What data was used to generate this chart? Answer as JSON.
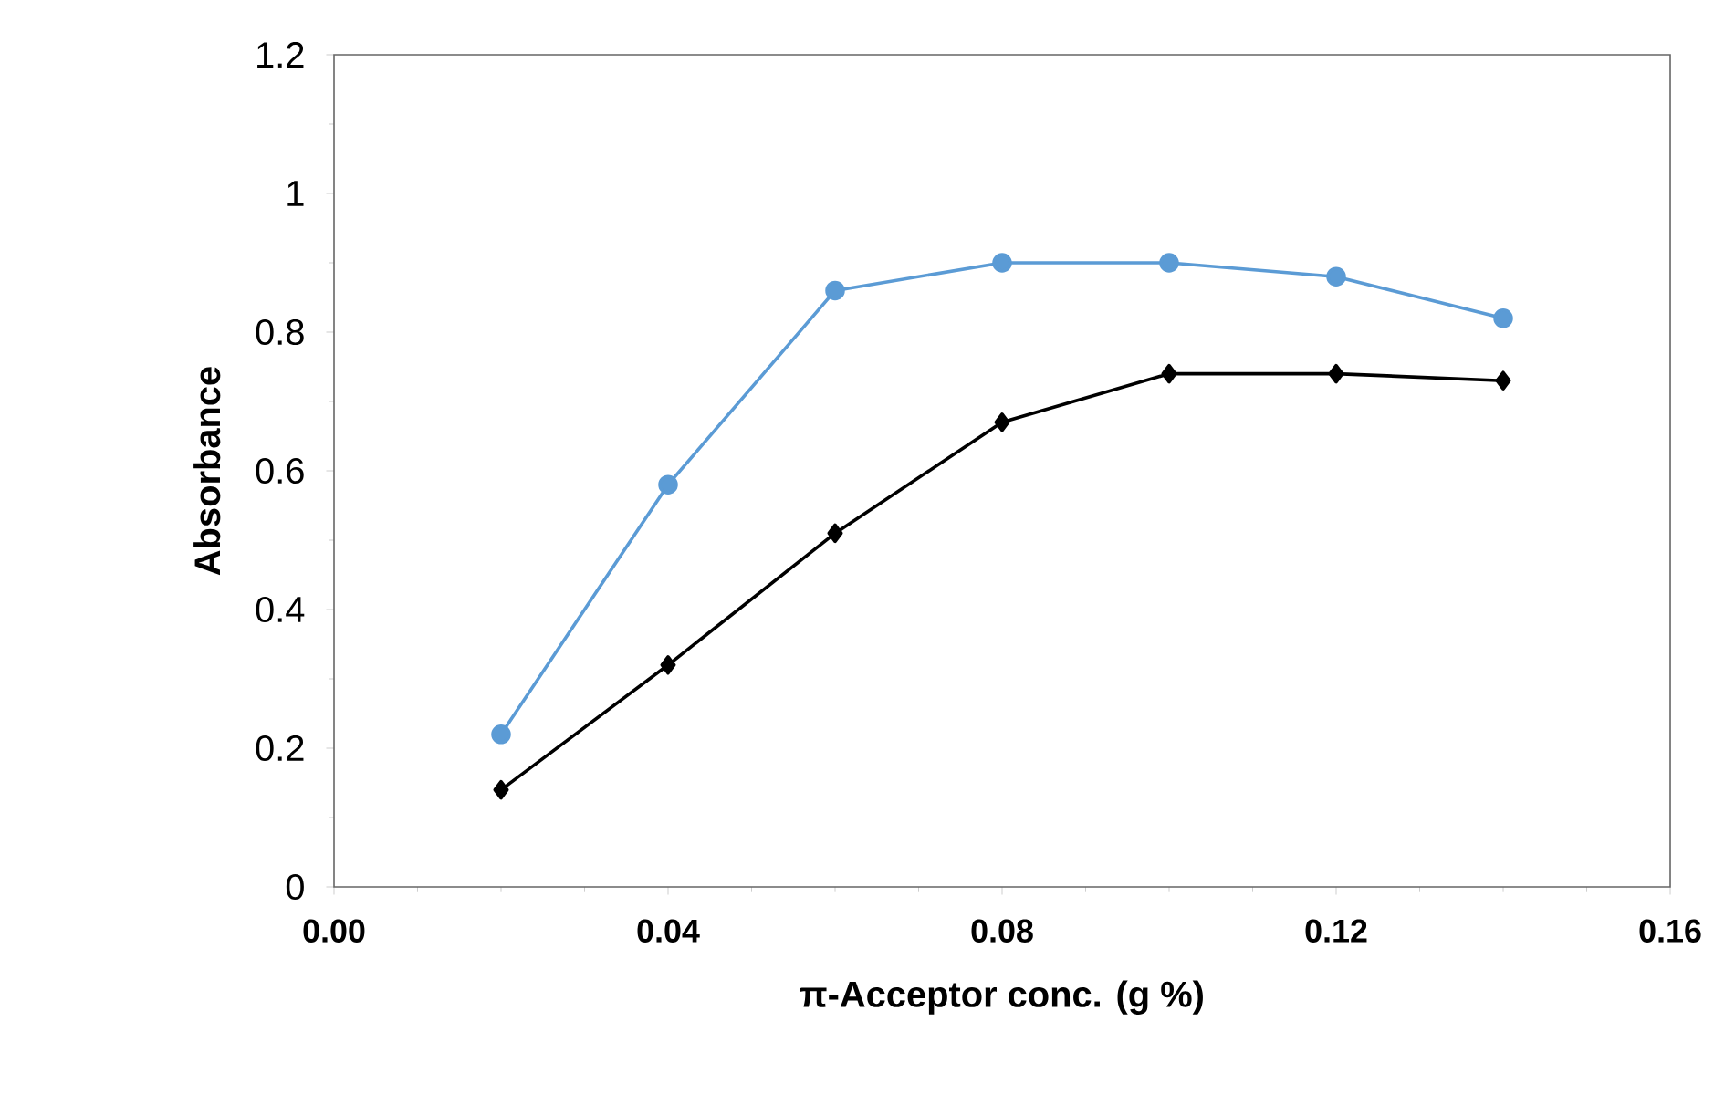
{
  "chart_data": {
    "type": "line",
    "xlabel": "π-Acceptor conc. (g %)",
    "ylabel": "Absorbance",
    "x": [
      0.02,
      0.04,
      0.06,
      0.08,
      0.1,
      0.12,
      0.14
    ],
    "series": [
      {
        "color": "#5b9bd5",
        "marker": "circle",
        "values": [
          0.22,
          0.58,
          0.86,
          0.9,
          0.9,
          0.88,
          0.82
        ]
      },
      {
        "color": "#000000",
        "marker": "diamond",
        "values": [
          0.14,
          0.32,
          0.51,
          0.67,
          0.74,
          0.74,
          0.73
        ]
      }
    ],
    "xlim": [
      0,
      0.16
    ],
    "xticks": [
      {
        "value": 0,
        "label": "0.00"
      },
      {
        "value": 0.04,
        "label": "0.04"
      },
      {
        "value": 0.08,
        "label": "0.08"
      },
      {
        "value": 0.12,
        "label": "0.12"
      },
      {
        "value": 0.16,
        "label": "0.16"
      }
    ],
    "ylim": [
      0,
      1.2
    ],
    "yticks": [
      0,
      0.2,
      0.4,
      0.6,
      0.8,
      1,
      1.2
    ],
    "grid": false,
    "line_style": "solid"
  }
}
